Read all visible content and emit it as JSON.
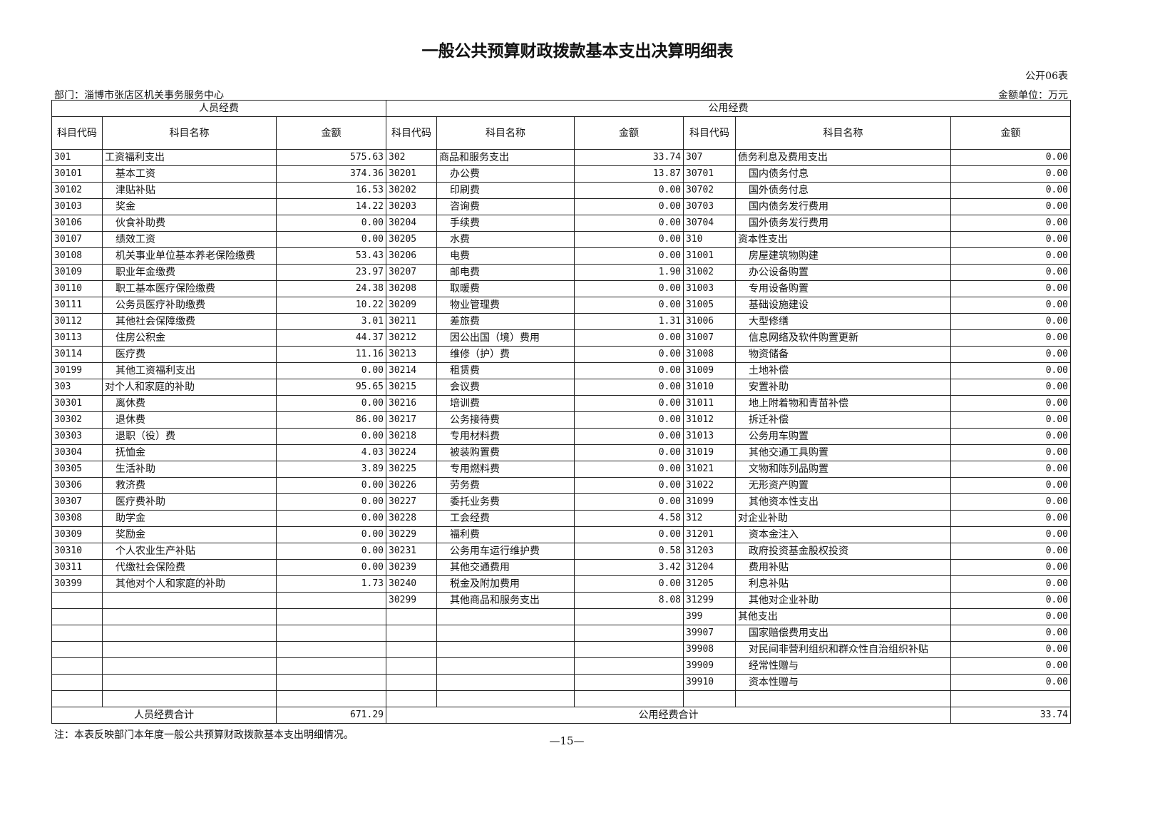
{
  "title": "一般公共预算财政拨款基本支出决算明细表",
  "table_no": "公开06表",
  "department": "部门：淄博市张店区机关事务服务中心",
  "unit": "金额单位：万元",
  "groups": {
    "personnel": "人员经费",
    "public": "公用经费"
  },
  "headers": {
    "code": "科目代码",
    "name": "科目名称",
    "amount": "金额"
  },
  "personnel": [
    [
      "301",
      "工资福利支出",
      "575.63"
    ],
    [
      "30101",
      "基本工资",
      "374.36"
    ],
    [
      "30102",
      "津贴补贴",
      "16.53"
    ],
    [
      "30103",
      "奖金",
      "14.22"
    ],
    [
      "30106",
      "伙食补助费",
      "0.00"
    ],
    [
      "30107",
      "绩效工资",
      "0.00"
    ],
    [
      "30108",
      "机关事业单位基本养老保险缴费",
      "53.43"
    ],
    [
      "30109",
      "职业年金缴费",
      "23.97"
    ],
    [
      "30110",
      "职工基本医疗保险缴费",
      "24.38"
    ],
    [
      "30111",
      "公务员医疗补助缴费",
      "10.22"
    ],
    [
      "30112",
      "其他社会保障缴费",
      "3.01"
    ],
    [
      "30113",
      "住房公积金",
      "44.37"
    ],
    [
      "30114",
      "医疗费",
      "11.16"
    ],
    [
      "30199",
      "其他工资福利支出",
      "0.00"
    ],
    [
      "303",
      "对个人和家庭的补助",
      "95.65"
    ],
    [
      "30301",
      "离休费",
      "0.00"
    ],
    [
      "30302",
      "退休费",
      "86.00"
    ],
    [
      "30303",
      "退职（役）费",
      "0.00"
    ],
    [
      "30304",
      "抚恤金",
      "4.03"
    ],
    [
      "30305",
      "生活补助",
      "3.89"
    ],
    [
      "30306",
      "救济费",
      "0.00"
    ],
    [
      "30307",
      "医疗费补助",
      "0.00"
    ],
    [
      "30308",
      "助学金",
      "0.00"
    ],
    [
      "30309",
      "奖励金",
      "0.00"
    ],
    [
      "30310",
      "个人农业生产补贴",
      "0.00"
    ],
    [
      "30311",
      "代缴社会保险费",
      "0.00"
    ],
    [
      "30399",
      "其他对个人和家庭的补助",
      "1.73"
    ]
  ],
  "public_a": [
    [
      "302",
      "商品和服务支出",
      "33.74"
    ],
    [
      "30201",
      "办公费",
      "13.87"
    ],
    [
      "30202",
      "印刷费",
      "0.00"
    ],
    [
      "30203",
      "咨询费",
      "0.00"
    ],
    [
      "30204",
      "手续费",
      "0.00"
    ],
    [
      "30205",
      "水费",
      "0.00"
    ],
    [
      "30206",
      "电费",
      "0.00"
    ],
    [
      "30207",
      "邮电费",
      "1.90"
    ],
    [
      "30208",
      "取暖费",
      "0.00"
    ],
    [
      "30209",
      "物业管理费",
      "0.00"
    ],
    [
      "30211",
      "差旅费",
      "1.31"
    ],
    [
      "30212",
      "因公出国（境）费用",
      "0.00"
    ],
    [
      "30213",
      "维修（护）费",
      "0.00"
    ],
    [
      "30214",
      "租赁费",
      "0.00"
    ],
    [
      "30215",
      "会议费",
      "0.00"
    ],
    [
      "30216",
      "培训费",
      "0.00"
    ],
    [
      "30217",
      "公务接待费",
      "0.00"
    ],
    [
      "30218",
      "专用材料费",
      "0.00"
    ],
    [
      "30224",
      "被装购置费",
      "0.00"
    ],
    [
      "30225",
      "专用燃料费",
      "0.00"
    ],
    [
      "30226",
      "劳务费",
      "0.00"
    ],
    [
      "30227",
      "委托业务费",
      "0.00"
    ],
    [
      "30228",
      "工会经费",
      "4.58"
    ],
    [
      "30229",
      "福利费",
      "0.00"
    ],
    [
      "30231",
      "公务用车运行维护费",
      "0.58"
    ],
    [
      "30239",
      "其他交通费用",
      "3.42"
    ],
    [
      "30240",
      "税金及附加费用",
      "0.00"
    ],
    [
      "30299",
      "其他商品和服务支出",
      "8.08"
    ]
  ],
  "public_b": [
    [
      "307",
      "债务利息及费用支出",
      "0.00"
    ],
    [
      "30701",
      "国内债务付息",
      "0.00"
    ],
    [
      "30702",
      "国外债务付息",
      "0.00"
    ],
    [
      "30703",
      "国内债务发行费用",
      "0.00"
    ],
    [
      "30704",
      "国外债务发行费用",
      "0.00"
    ],
    [
      "310",
      "资本性支出",
      "0.00"
    ],
    [
      "31001",
      "房屋建筑物购建",
      "0.00"
    ],
    [
      "31002",
      "办公设备购置",
      "0.00"
    ],
    [
      "31003",
      "专用设备购置",
      "0.00"
    ],
    [
      "31005",
      "基础设施建设",
      "0.00"
    ],
    [
      "31006",
      "大型修缮",
      "0.00"
    ],
    [
      "31007",
      "信息网络及软件购置更新",
      "0.00"
    ],
    [
      "31008",
      "物资储备",
      "0.00"
    ],
    [
      "31009",
      "土地补偿",
      "0.00"
    ],
    [
      "31010",
      "安置补助",
      "0.00"
    ],
    [
      "31011",
      "地上附着物和青苗补偿",
      "0.00"
    ],
    [
      "31012",
      "拆迁补偿",
      "0.00"
    ],
    [
      "31013",
      "公务用车购置",
      "0.00"
    ],
    [
      "31019",
      "其他交通工具购置",
      "0.00"
    ],
    [
      "31021",
      "文物和陈列品购置",
      "0.00"
    ],
    [
      "31022",
      "无形资产购置",
      "0.00"
    ],
    [
      "31099",
      "其他资本性支出",
      "0.00"
    ],
    [
      "312",
      "对企业补助",
      "0.00"
    ],
    [
      "31201",
      "资本金注入",
      "0.00"
    ],
    [
      "31203",
      "政府投资基金股权投资",
      "0.00"
    ],
    [
      "31204",
      "费用补贴",
      "0.00"
    ],
    [
      "31205",
      "利息补贴",
      "0.00"
    ],
    [
      "31299",
      "其他对企业补助",
      "0.00"
    ],
    [
      "399",
      "其他支出",
      "0.00"
    ],
    [
      "39907",
      "国家赔偿费用支出",
      "0.00"
    ],
    [
      "39908",
      "对民间非营利组织和群众性自治组织补贴",
      "0.00"
    ],
    [
      "39909",
      "经常性赠与",
      "0.00"
    ],
    [
      "39910",
      "资本性赠与",
      "0.00"
    ]
  ],
  "totals": {
    "personnel_label": "人员经费合计",
    "personnel_value": "671.29",
    "public_label": "公用经费合计",
    "public_value": "33.74"
  },
  "note": "注：本表反映部门本年度一般公共预算财政拨款基本支出明细情况。",
  "page_number": "—15—"
}
